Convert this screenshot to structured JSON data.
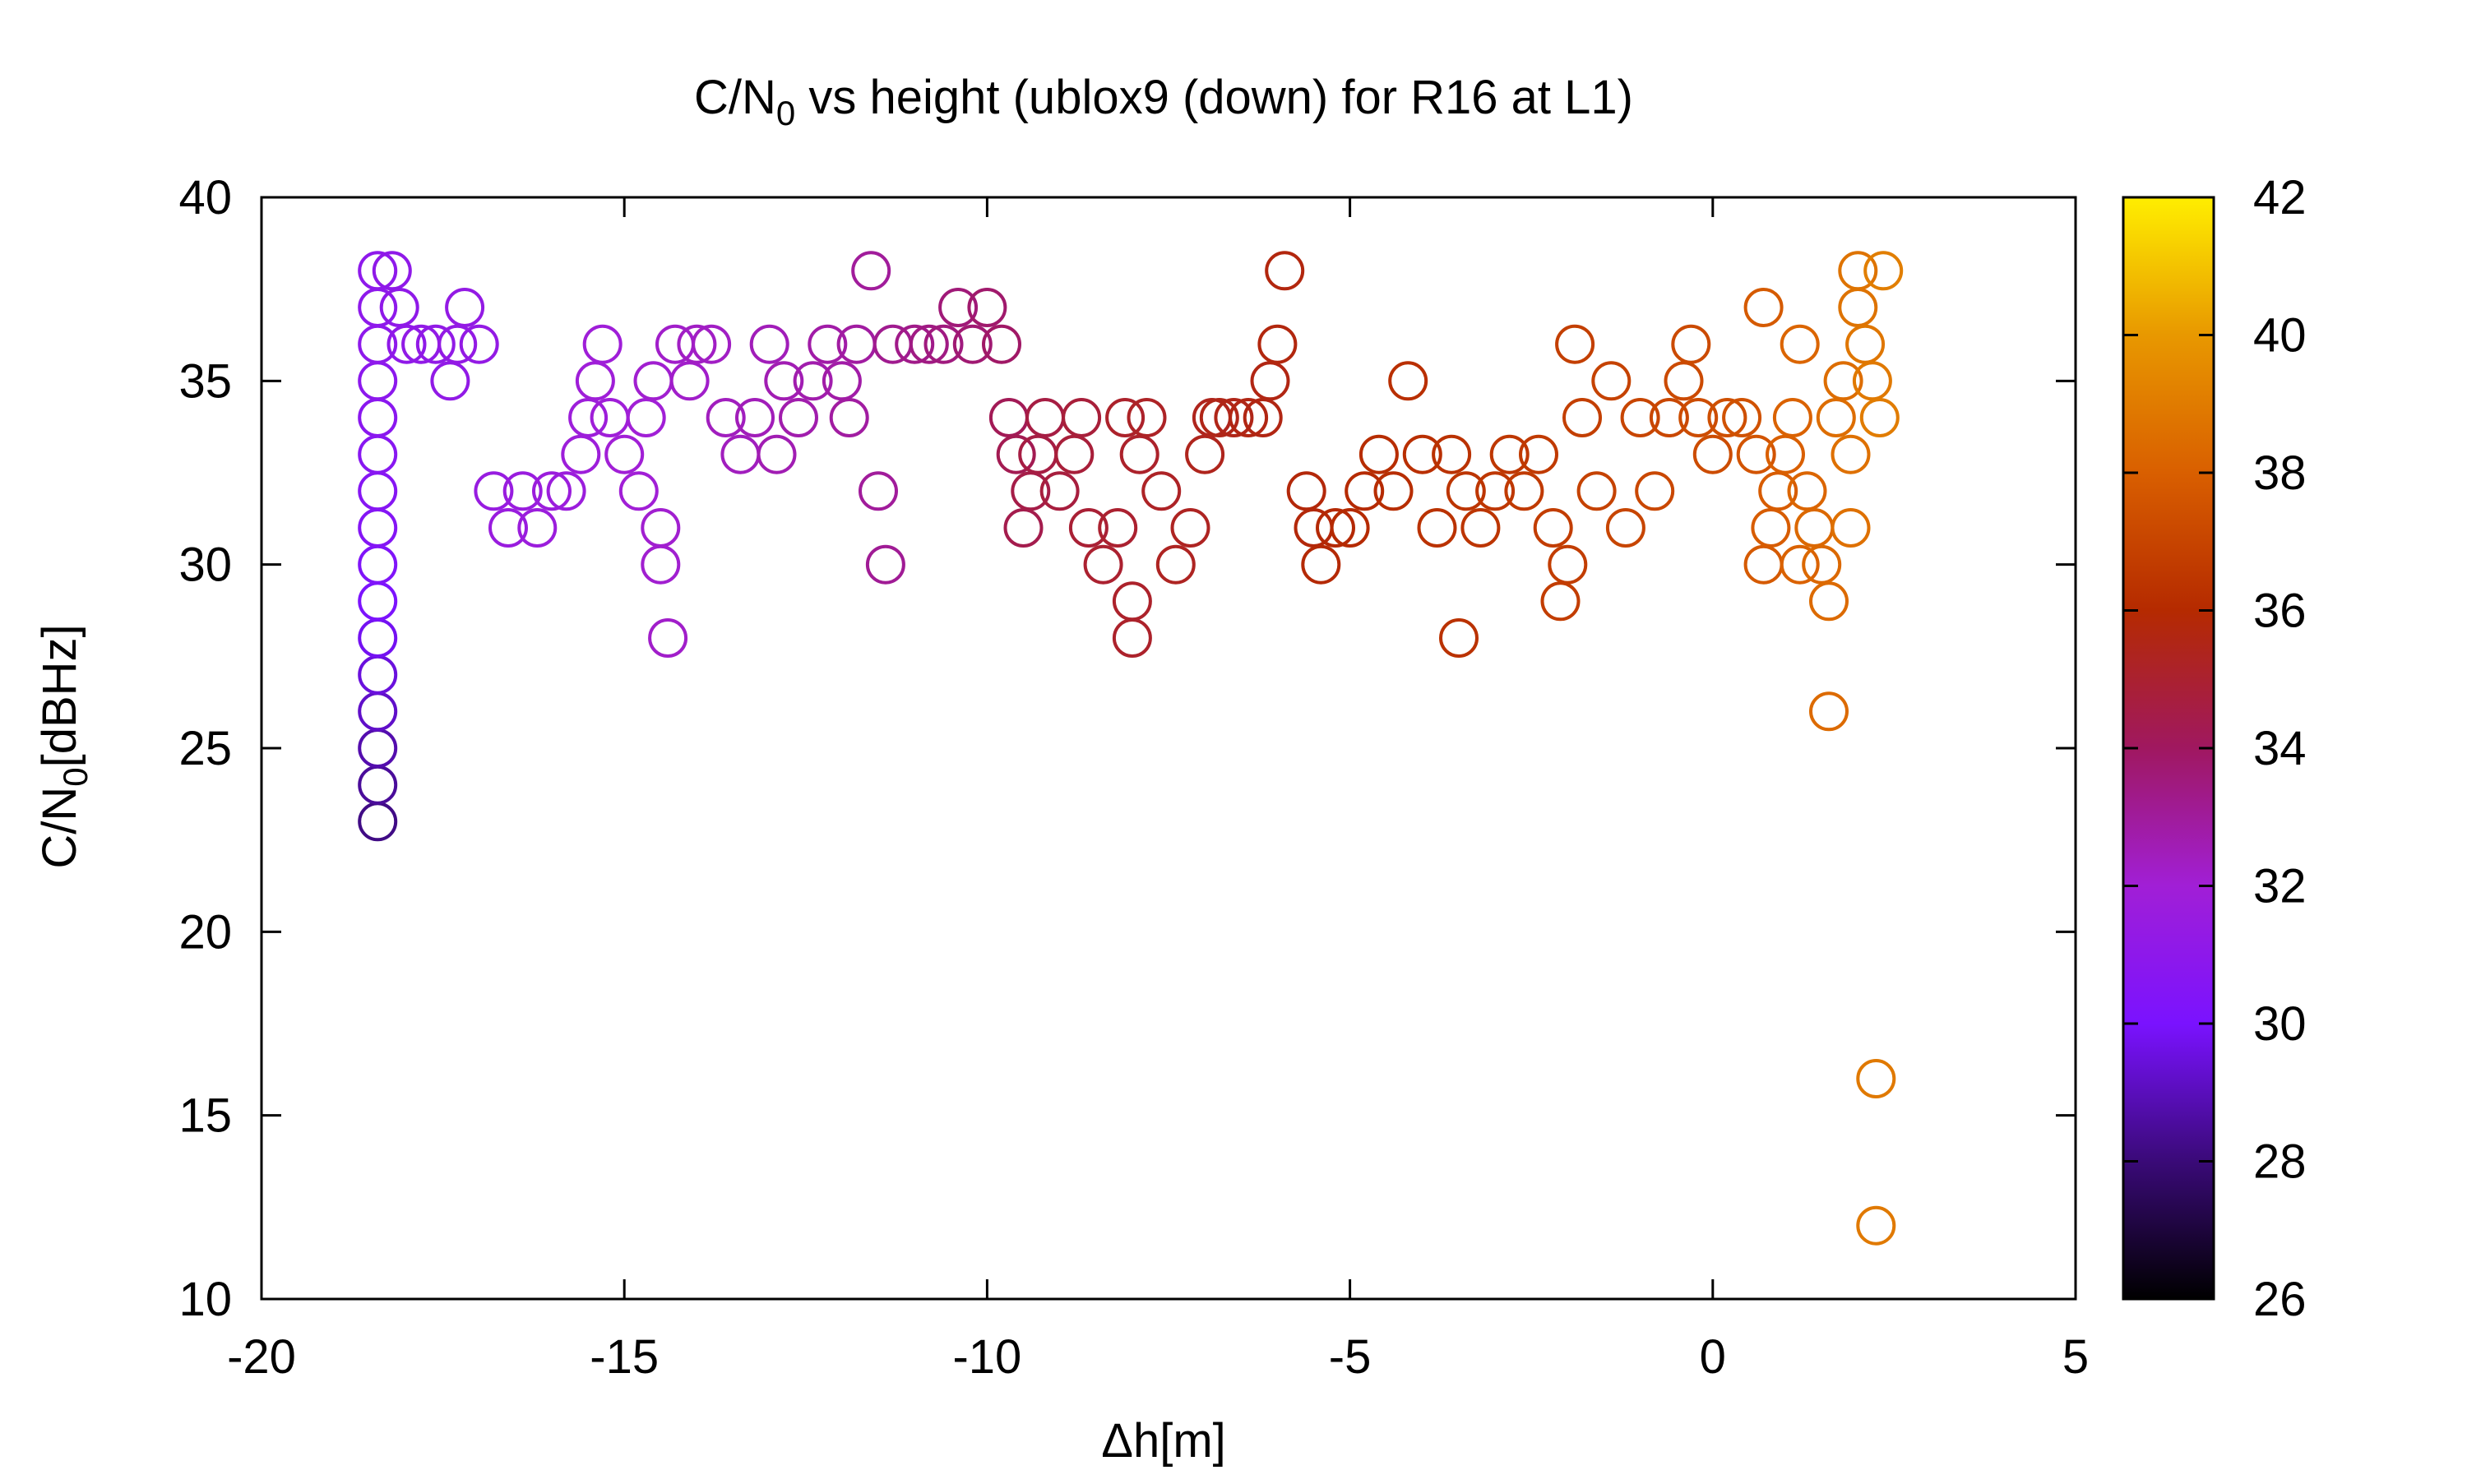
{
  "chart_data": {
    "type": "scatter",
    "title_parts": {
      "pre": "C/N",
      "sub": "0",
      "post": " vs height (ublox9 (down) for R16 at L1)"
    },
    "xlabel": "Δh[m]",
    "ylabel_parts": {
      "pre": "C/N",
      "sub": "0",
      "post": "[dBHz]"
    },
    "xlim": [
      -20,
      5
    ],
    "ylim": [
      10,
      40
    ],
    "x_ticks": [
      -20,
      -15,
      -10,
      -5,
      0,
      5
    ],
    "x_tick_labels": [
      "-20",
      "-15",
      "-10",
      "-5",
      "0",
      "5"
    ],
    "y_ticks": [
      10,
      15,
      20,
      25,
      30,
      35,
      40
    ],
    "y_tick_labels": [
      "10",
      "15",
      "20",
      "25",
      "30",
      "35",
      "40"
    ],
    "marker": "open-circle",
    "grid": false,
    "colorbar": {
      "range": [
        26,
        42
      ],
      "ticks": [
        26,
        28,
        30,
        32,
        34,
        36,
        38,
        40,
        42
      ],
      "tick_labels": [
        "26",
        "28",
        "30",
        "32",
        "34",
        "36",
        "38",
        "40",
        "42"
      ],
      "palette": "black-blue-purple-red-orange-yellow",
      "colors": [
        "#000000",
        "#3a0a78",
        "#7a12ff",
        "#a11fd6",
        "#a01860",
        "#b52a00",
        "#d95f00",
        "#e89800",
        "#ffee00"
      ]
    },
    "points": [
      [
        -18.4,
        23,
        28.2
      ],
      [
        -18.4,
        24,
        28.5
      ],
      [
        -18.4,
        25,
        28.8
      ],
      [
        -18.4,
        26,
        29.2
      ],
      [
        -18.4,
        27,
        29.5
      ],
      [
        -18.4,
        28,
        29.8
      ],
      [
        -18.4,
        29,
        30.1
      ],
      [
        -18.4,
        30,
        30.3
      ],
      [
        -18.4,
        31,
        30.5
      ],
      [
        -18.4,
        32,
        30.6
      ],
      [
        -18.4,
        33,
        30.7
      ],
      [
        -18.4,
        34,
        30.8
      ],
      [
        -18.4,
        35,
        30.9
      ],
      [
        -18.4,
        36,
        31.0
      ],
      [
        -18.4,
        37,
        31.0
      ],
      [
        -18.4,
        38,
        31.0
      ],
      [
        -18.2,
        38,
        31.1
      ],
      [
        -18.1,
        37,
        31.1
      ],
      [
        -18.0,
        36,
        31.1
      ],
      [
        -17.8,
        36,
        31.2
      ],
      [
        -17.6,
        36,
        31.2
      ],
      [
        -17.4,
        35,
        31.2
      ],
      [
        -17.3,
        36,
        31.3
      ],
      [
        -17.2,
        37,
        31.3
      ],
      [
        -17.0,
        36,
        31.3
      ],
      [
        -16.8,
        32,
        31.5
      ],
      [
        -16.6,
        31,
        31.6
      ],
      [
        -16.4,
        32,
        31.6
      ],
      [
        -16.2,
        31,
        31.7
      ],
      [
        -16.0,
        32,
        31.7
      ],
      [
        -15.8,
        32,
        31.7
      ],
      [
        -15.6,
        33,
        31.8
      ],
      [
        -15.5,
        34,
        31.8
      ],
      [
        -15.4,
        35,
        31.9
      ],
      [
        -15.3,
        36,
        31.9
      ],
      [
        -15.2,
        34,
        31.9
      ],
      [
        -15.0,
        33,
        32.0
      ],
      [
        -14.8,
        32,
        32.0
      ],
      [
        -14.7,
        34,
        32.0
      ],
      [
        -14.6,
        35,
        32.1
      ],
      [
        -14.5,
        31,
        32.1
      ],
      [
        -14.5,
        30,
        32.1
      ],
      [
        -14.4,
        28,
        32.2
      ],
      [
        -14.3,
        36,
        32.2
      ],
      [
        -14.1,
        35,
        32.2
      ],
      [
        -14.0,
        36,
        32.3
      ],
      [
        -13.8,
        36,
        32.3
      ],
      [
        -13.6,
        34,
        32.4
      ],
      [
        -13.4,
        33,
        32.4
      ],
      [
        -13.2,
        34,
        32.5
      ],
      [
        -13.0,
        36,
        32.5
      ],
      [
        -12.9,
        33,
        32.6
      ],
      [
        -12.8,
        35,
        32.6
      ],
      [
        -12.6,
        34,
        32.7
      ],
      [
        -12.4,
        35,
        32.7
      ],
      [
        -12.2,
        36,
        32.8
      ],
      [
        -12.0,
        35,
        32.8
      ],
      [
        -11.9,
        34,
        32.9
      ],
      [
        -11.8,
        36,
        32.9
      ],
      [
        -11.6,
        38,
        33.0
      ],
      [
        -11.5,
        32,
        33.0
      ],
      [
        -11.4,
        30,
        33.1
      ],
      [
        -11.3,
        36,
        33.2
      ],
      [
        -11.0,
        36,
        33.3
      ],
      [
        -10.8,
        36,
        33.4
      ],
      [
        -10.6,
        36,
        33.5
      ],
      [
        -10.4,
        37,
        33.6
      ],
      [
        -10.2,
        36,
        33.7
      ],
      [
        -10.0,
        37,
        33.8
      ],
      [
        -9.8,
        36,
        33.9
      ],
      [
        -9.7,
        34,
        34.2
      ],
      [
        -9.6,
        33,
        34.3
      ],
      [
        -9.5,
        31,
        34.4
      ],
      [
        -9.4,
        32,
        34.5
      ],
      [
        -9.3,
        33,
        34.6
      ],
      [
        -9.2,
        34,
        34.6
      ],
      [
        -9.0,
        32,
        34.7
      ],
      [
        -8.8,
        33,
        34.8
      ],
      [
        -8.7,
        34,
        34.8
      ],
      [
        -8.6,
        31,
        34.9
      ],
      [
        -8.4,
        30,
        35.0
      ],
      [
        -8.2,
        31,
        35.0
      ],
      [
        -8.1,
        34,
        35.1
      ],
      [
        -8.0,
        29,
        35.1
      ],
      [
        -8.0,
        28,
        35.1
      ],
      [
        -7.9,
        33,
        35.1
      ],
      [
        -7.8,
        34,
        35.2
      ],
      [
        -7.6,
        32,
        35.2
      ],
      [
        -7.4,
        30,
        35.3
      ],
      [
        -7.2,
        31,
        35.3
      ],
      [
        -7.0,
        33,
        35.4
      ],
      [
        -6.9,
        34,
        35.4
      ],
      [
        -6.8,
        34,
        35.5
      ],
      [
        -6.6,
        34,
        35.5
      ],
      [
        -6.4,
        34,
        35.6
      ],
      [
        -6.2,
        34,
        35.6
      ],
      [
        -6.1,
        35,
        35.6
      ],
      [
        -6.0,
        36,
        35.7
      ],
      [
        -5.9,
        38,
        35.7
      ],
      [
        -5.6,
        32,
        35.8
      ],
      [
        -5.5,
        31,
        35.8
      ],
      [
        -5.4,
        30,
        35.9
      ],
      [
        -5.2,
        31,
        35.9
      ],
      [
        -5.0,
        31,
        36.0
      ],
      [
        -4.8,
        32,
        36.0
      ],
      [
        -4.6,
        33,
        36.1
      ],
      [
        -4.4,
        32,
        36.1
      ],
      [
        -4.2,
        35,
        36.2
      ],
      [
        -4.0,
        33,
        36.2
      ],
      [
        -3.8,
        31,
        36.3
      ],
      [
        -3.6,
        33,
        36.3
      ],
      [
        -3.5,
        28,
        36.3
      ],
      [
        -3.4,
        32,
        36.4
      ],
      [
        -3.2,
        31,
        36.4
      ],
      [
        -3.0,
        32,
        36.5
      ],
      [
        -2.8,
        33,
        36.5
      ],
      [
        -2.6,
        32,
        36.6
      ],
      [
        -2.4,
        33,
        36.6
      ],
      [
        -2.2,
        31,
        36.7
      ],
      [
        -2.1,
        29,
        36.7
      ],
      [
        -2.0,
        30,
        36.7
      ],
      [
        -1.9,
        36,
        36.8
      ],
      [
        -1.8,
        34,
        36.8
      ],
      [
        -1.6,
        32,
        36.9
      ],
      [
        -1.4,
        35,
        36.9
      ],
      [
        -1.2,
        31,
        37.0
      ],
      [
        -1.0,
        34,
        37.0
      ],
      [
        -0.8,
        32,
        37.1
      ],
      [
        -0.6,
        34,
        37.1
      ],
      [
        -0.4,
        35,
        37.2
      ],
      [
        -0.3,
        36,
        37.2
      ],
      [
        -0.2,
        34,
        37.3
      ],
      [
        0.0,
        33,
        37.3
      ],
      [
        0.2,
        34,
        37.4
      ],
      [
        0.4,
        34,
        37.5
      ],
      [
        0.6,
        33,
        37.6
      ],
      [
        0.7,
        30,
        37.8
      ],
      [
        0.7,
        37,
        37.8
      ],
      [
        0.8,
        31,
        37.9
      ],
      [
        0.9,
        32,
        37.9
      ],
      [
        1.0,
        33,
        38.0
      ],
      [
        1.1,
        34,
        38.1
      ],
      [
        1.2,
        30,
        38.1
      ],
      [
        1.2,
        36,
        38.2
      ],
      [
        1.3,
        32,
        38.2
      ],
      [
        1.4,
        31,
        38.3
      ],
      [
        1.5,
        30,
        38.3
      ],
      [
        1.6,
        26,
        38.4
      ],
      [
        1.6,
        29,
        38.4
      ],
      [
        1.7,
        34,
        38.5
      ],
      [
        1.8,
        35,
        38.5
      ],
      [
        1.9,
        31,
        38.6
      ],
      [
        1.9,
        33,
        38.6
      ],
      [
        2.0,
        37,
        38.7
      ],
      [
        2.0,
        38,
        38.7
      ],
      [
        2.1,
        36,
        38.8
      ],
      [
        2.2,
        35,
        38.9
      ],
      [
        2.25,
        12,
        38.9
      ],
      [
        2.25,
        16,
        38.9
      ],
      [
        2.3,
        34,
        39.0
      ],
      [
        2.35,
        38,
        39.1
      ]
    ]
  }
}
